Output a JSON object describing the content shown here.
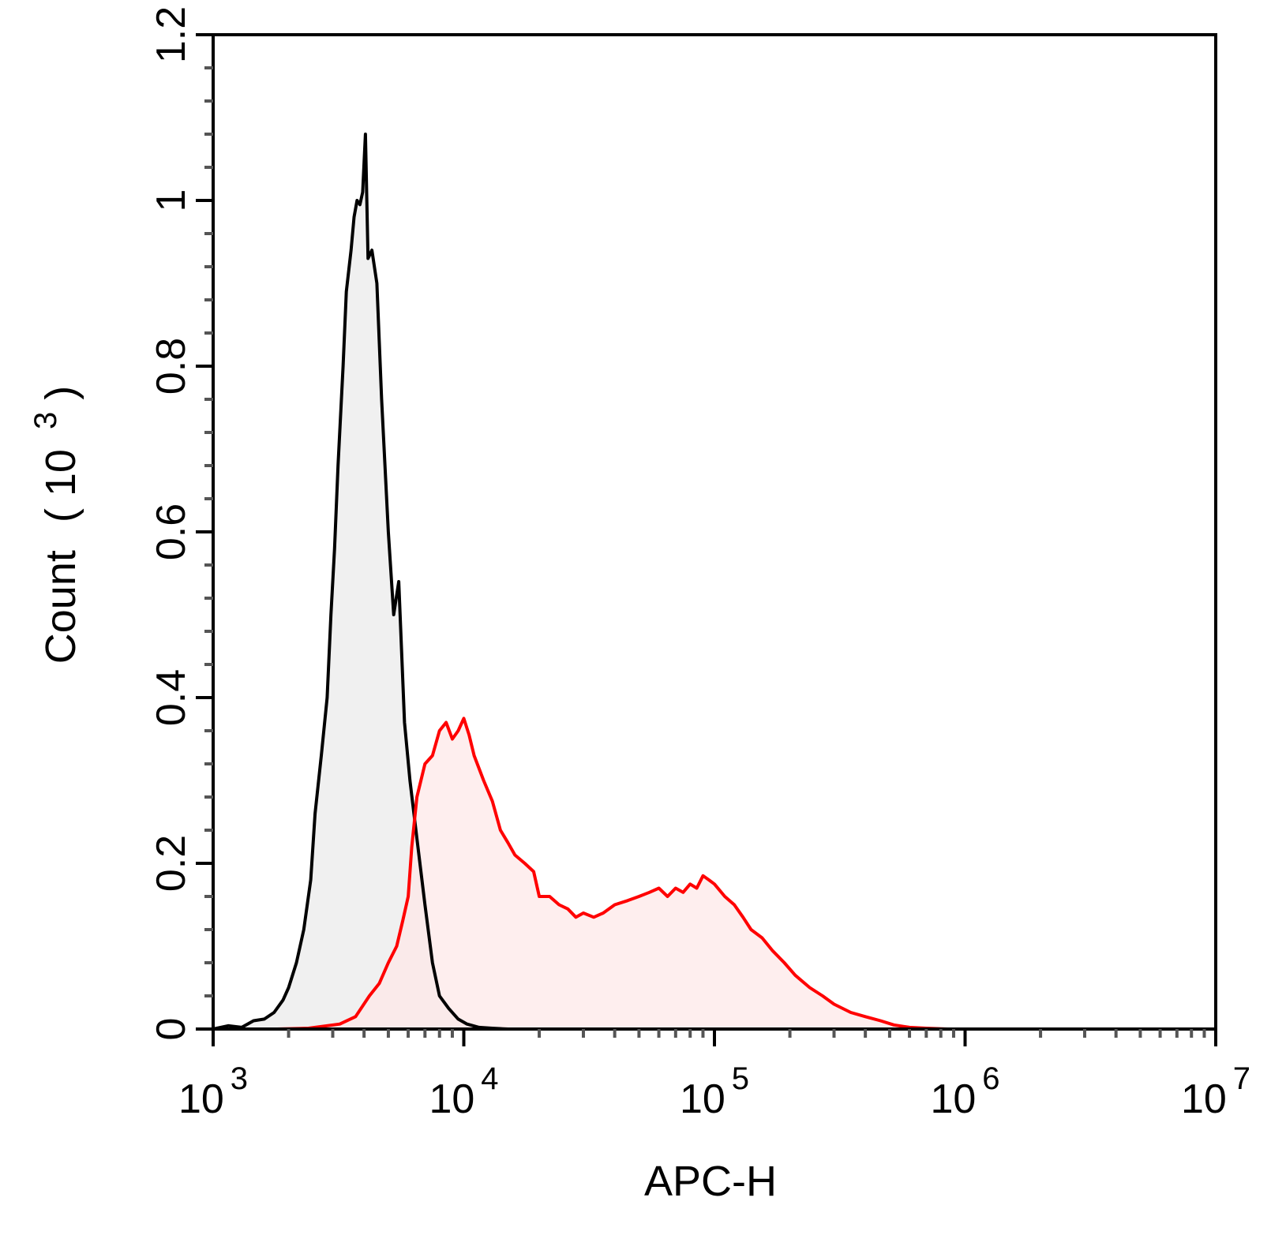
{
  "chart_data": {
    "type": "area",
    "xscale": "log",
    "xlim": [
      1000,
      10000000
    ],
    "ylim": [
      0,
      1.2
    ],
    "grid": false,
    "legend": "none",
    "xlabel": "APC-H",
    "ylabel": {
      "main": "Count",
      "unit_base": "10",
      "unit_exponent": "3"
    },
    "x_ticks": [
      {
        "value": 1000,
        "base": "10",
        "exp": "3"
      },
      {
        "value": 10000,
        "base": "10",
        "exp": "4"
      },
      {
        "value": 100000,
        "base": "10",
        "exp": "5"
      },
      {
        "value": 1000000,
        "base": "10",
        "exp": "6"
      },
      {
        "value": 10000000,
        "base": "10",
        "exp": "7"
      }
    ],
    "y_ticks": [
      {
        "value": 0,
        "label": "0"
      },
      {
        "value": 0.2,
        "label": "0.2"
      },
      {
        "value": 0.4,
        "label": "0.4"
      },
      {
        "value": 0.6,
        "label": "0.6"
      },
      {
        "value": 0.8,
        "label": "0.8"
      },
      {
        "value": 1.0,
        "label": "1"
      },
      {
        "value": 1.2,
        "label": "1.2"
      }
    ],
    "series": [
      {
        "color": "#000000",
        "fill": "#ebebeb",
        "points": [
          [
            1000,
            0
          ],
          [
            1150,
            0.004
          ],
          [
            1300,
            0.002
          ],
          [
            1450,
            0.01
          ],
          [
            1600,
            0.012
          ],
          [
            1750,
            0.02
          ],
          [
            1900,
            0.035
          ],
          [
            2000,
            0.05
          ],
          [
            2150,
            0.08
          ],
          [
            2300,
            0.12
          ],
          [
            2450,
            0.18
          ],
          [
            2550,
            0.26
          ],
          [
            2700,
            0.33
          ],
          [
            2850,
            0.4
          ],
          [
            2950,
            0.5
          ],
          [
            3050,
            0.58
          ],
          [
            3150,
            0.68
          ],
          [
            3300,
            0.8
          ],
          [
            3400,
            0.89
          ],
          [
            3550,
            0.94
          ],
          [
            3650,
            0.98
          ],
          [
            3750,
            1.0
          ],
          [
            3850,
            0.995
          ],
          [
            3950,
            1.01
          ],
          [
            4050,
            1.08
          ],
          [
            4150,
            0.93
          ],
          [
            4300,
            0.94
          ],
          [
            4500,
            0.9
          ],
          [
            4700,
            0.76
          ],
          [
            5000,
            0.6
          ],
          [
            5250,
            0.5
          ],
          [
            5500,
            0.54
          ],
          [
            5800,
            0.37
          ],
          [
            6100,
            0.3
          ],
          [
            6500,
            0.23
          ],
          [
            7000,
            0.15
          ],
          [
            7500,
            0.08
          ],
          [
            8000,
            0.04
          ],
          [
            8700,
            0.025
          ],
          [
            9500,
            0.012
          ],
          [
            10300,
            0.006
          ],
          [
            11500,
            0.002
          ],
          [
            13000,
            0.001
          ],
          [
            15000,
            0
          ]
        ]
      },
      {
        "color": "#ff0000",
        "fill": "#fde8e8",
        "points": [
          [
            1200,
            0
          ],
          [
            1800,
            0
          ],
          [
            2400,
            0.001
          ],
          [
            3200,
            0.006
          ],
          [
            3700,
            0.015
          ],
          [
            4200,
            0.04
          ],
          [
            4600,
            0.055
          ],
          [
            5000,
            0.08
          ],
          [
            5400,
            0.1
          ],
          [
            5700,
            0.13
          ],
          [
            6000,
            0.16
          ],
          [
            6200,
            0.22
          ],
          [
            6500,
            0.28
          ],
          [
            7000,
            0.32
          ],
          [
            7500,
            0.33
          ],
          [
            8000,
            0.36
          ],
          [
            8500,
            0.37
          ],
          [
            9000,
            0.35
          ],
          [
            9500,
            0.36
          ],
          [
            10000,
            0.375
          ],
          [
            10500,
            0.355
          ],
          [
            11000,
            0.33
          ],
          [
            12000,
            0.3
          ],
          [
            13000,
            0.275
          ],
          [
            14000,
            0.24
          ],
          [
            15000,
            0.225
          ],
          [
            16000,
            0.21
          ],
          [
            17500,
            0.2
          ],
          [
            19000,
            0.19
          ],
          [
            20000,
            0.16
          ],
          [
            22000,
            0.16
          ],
          [
            24000,
            0.15
          ],
          [
            26000,
            0.145
          ],
          [
            28000,
            0.135
          ],
          [
            30000,
            0.14
          ],
          [
            33000,
            0.135
          ],
          [
            36000,
            0.14
          ],
          [
            40000,
            0.15
          ],
          [
            45000,
            0.155
          ],
          [
            50000,
            0.16
          ],
          [
            55000,
            0.165
          ],
          [
            60000,
            0.17
          ],
          [
            65000,
            0.16
          ],
          [
            70000,
            0.17
          ],
          [
            75000,
            0.165
          ],
          [
            80000,
            0.175
          ],
          [
            85000,
            0.17
          ],
          [
            90000,
            0.185
          ],
          [
            95000,
            0.18
          ],
          [
            100000,
            0.175
          ],
          [
            110000,
            0.16
          ],
          [
            120000,
            0.15
          ],
          [
            130000,
            0.135
          ],
          [
            140000,
            0.12
          ],
          [
            155000,
            0.11
          ],
          [
            170000,
            0.095
          ],
          [
            190000,
            0.08
          ],
          [
            210000,
            0.065
          ],
          [
            240000,
            0.05
          ],
          [
            270000,
            0.04
          ],
          [
            300000,
            0.03
          ],
          [
            350000,
            0.02
          ],
          [
            400000,
            0.015
          ],
          [
            460000,
            0.01
          ],
          [
            520000,
            0.005
          ],
          [
            600000,
            0.002
          ],
          [
            700000,
            0.001
          ],
          [
            850000,
            0
          ],
          [
            1000000,
            0
          ]
        ]
      }
    ]
  }
}
